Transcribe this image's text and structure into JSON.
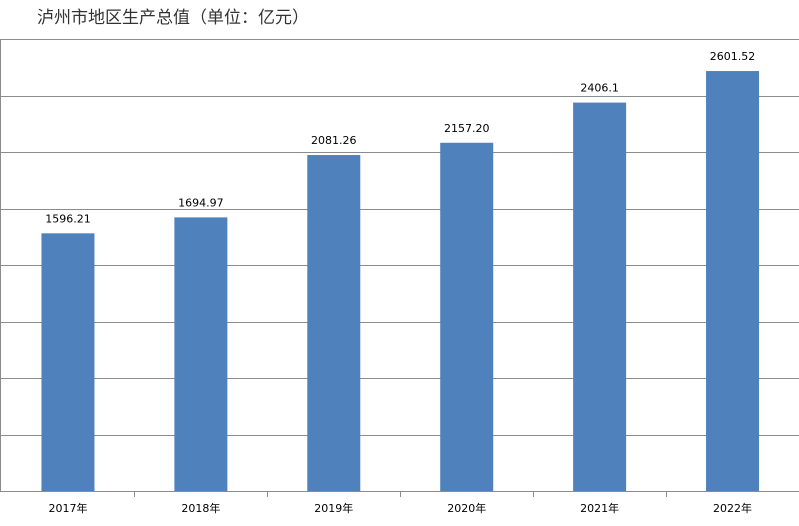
{
  "chart_data": {
    "type": "bar",
    "title": "泸州市地区生产总值（单位：亿元）",
    "categories": [
      "2017年",
      "2018年",
      "2019年",
      "2020年",
      "2021年",
      "2022年"
    ],
    "values": [
      1596.21,
      1694.97,
      2081.26,
      2157.2,
      2406.1,
      2601.52
    ],
    "value_labels": [
      "1596.21",
      "1694.97",
      "2081.26",
      "2157.20",
      "2406.1",
      "2601.52"
    ],
    "color": "#4f81bd",
    "ylim": [
      0,
      2800
    ],
    "yticks": [
      0,
      350,
      700,
      1050,
      1400,
      1750,
      2100,
      2450,
      2800
    ],
    "grid": true
  }
}
